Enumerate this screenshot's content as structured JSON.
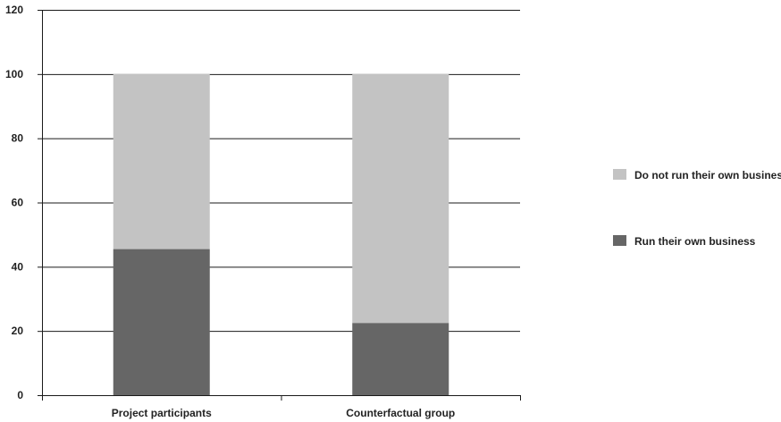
{
  "chart_data": {
    "type": "bar",
    "stacked": true,
    "categories": [
      "Project participants",
      "Counterfactual group"
    ],
    "series": [
      {
        "name": "Run their own business",
        "color": "#666666",
        "values": [
          45.5,
          22.5
        ]
      },
      {
        "name": "Do not run their own business",
        "color": "#c3c3c3",
        "values": [
          54.5,
          77.5
        ]
      }
    ],
    "ylim": [
      0,
      120
    ],
    "yticks": [
      0,
      20,
      40,
      60,
      80,
      100,
      120
    ],
    "grid": true,
    "legend_position": "right",
    "title": "",
    "xlabel": "",
    "ylabel": ""
  }
}
